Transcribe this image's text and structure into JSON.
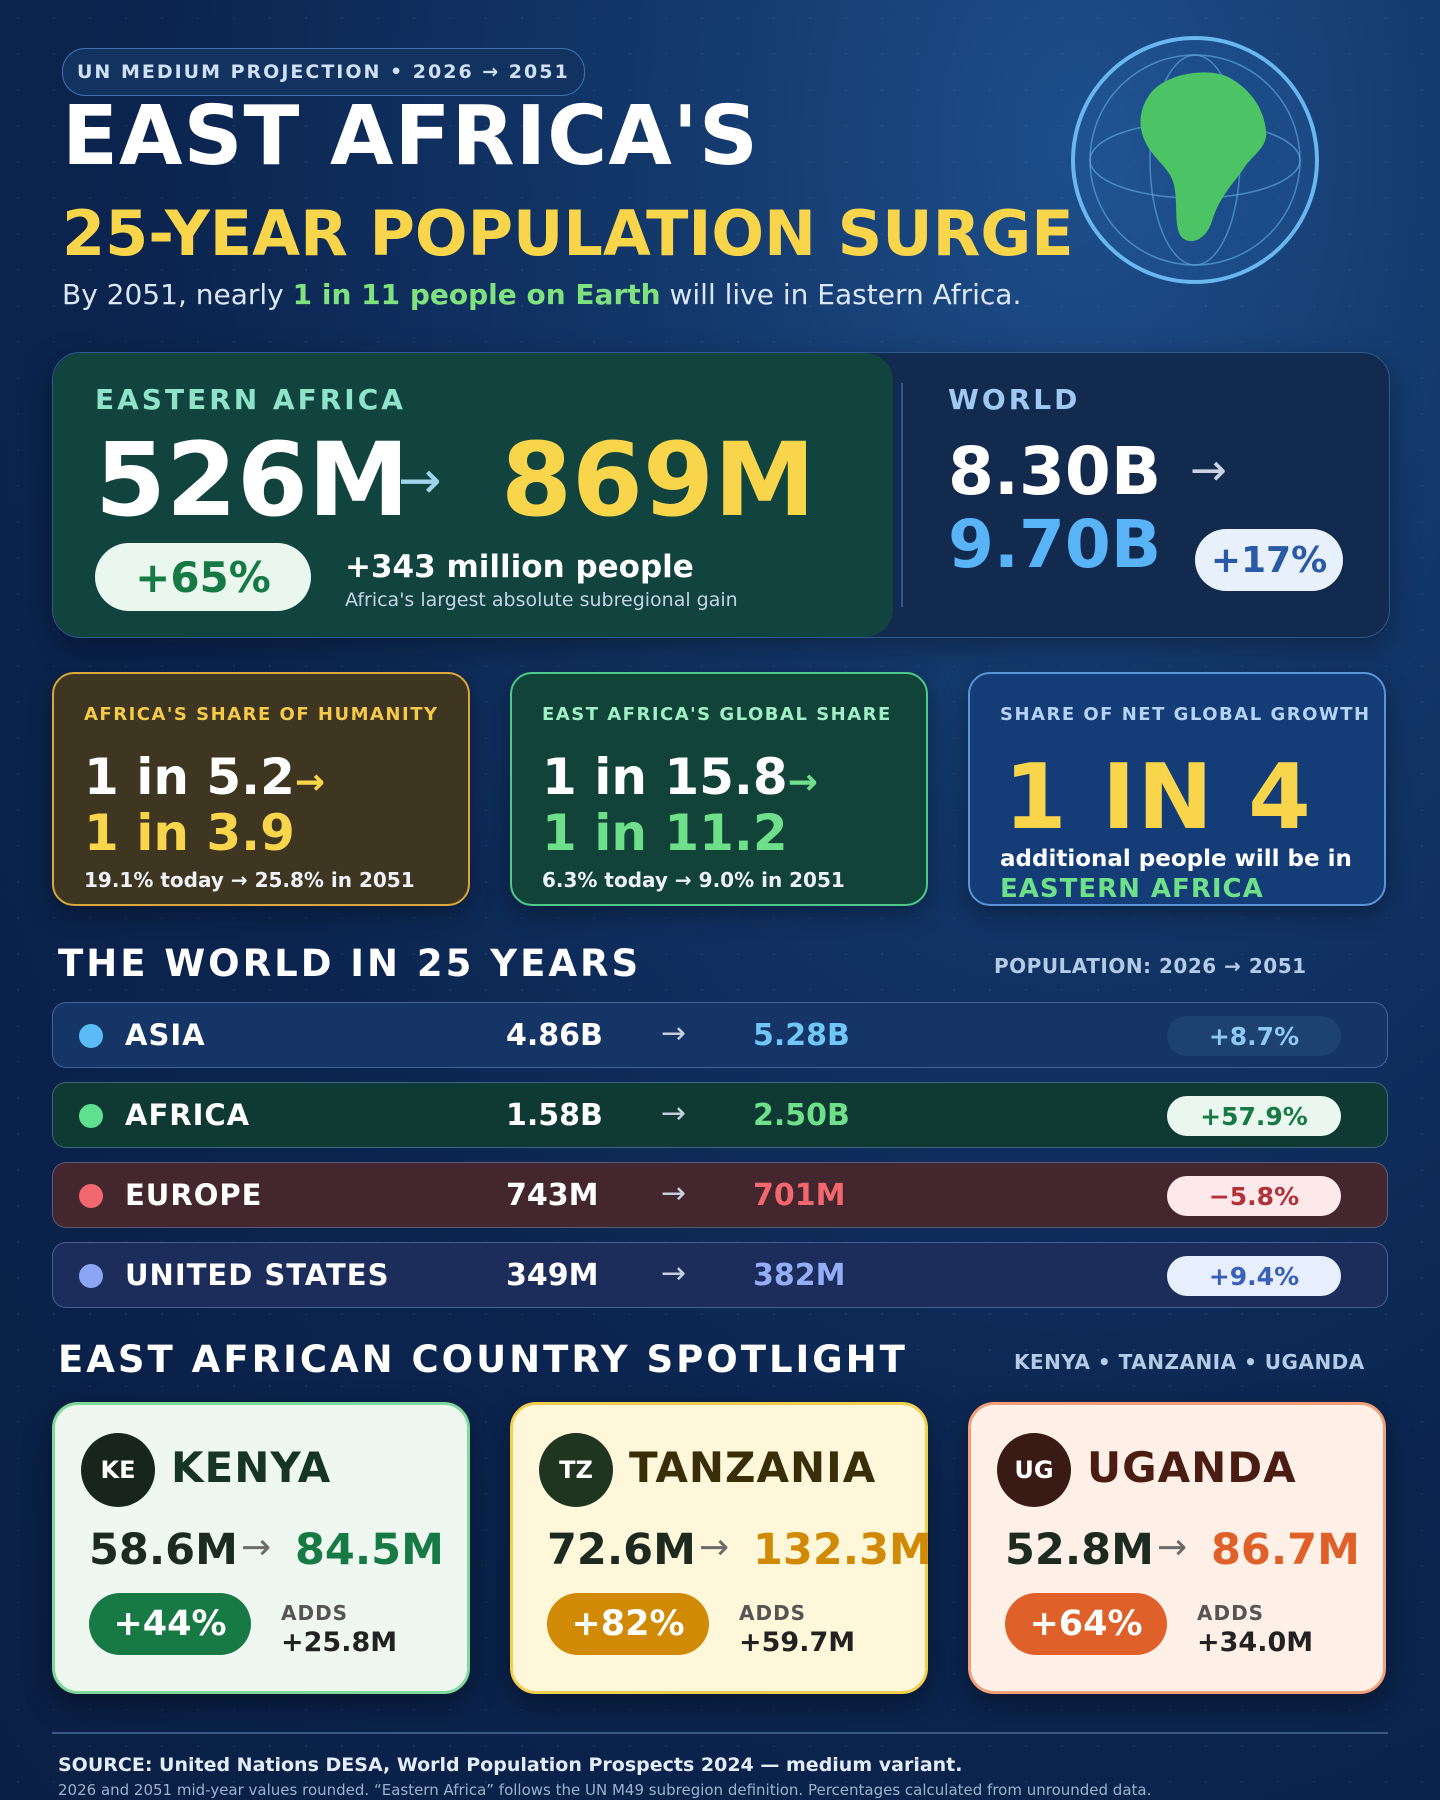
{
  "header": {
    "tag": "UN MEDIUM PROJECTION • 2026 → 2051",
    "title_line1": "EAST AFRICA'S",
    "title_line2": "25-YEAR POPULATION SURGE",
    "subtitle_pre": "By 2051, nearly ",
    "subtitle_highlight": "1 in 11 people on Earth",
    "subtitle_post": " will live in Eastern Africa."
  },
  "hero": {
    "ea_label": "EASTERN AFRICA",
    "ea_from": "526M",
    "ea_to": "869M",
    "ea_change": "+65%",
    "ea_gain": "+343 million people",
    "ea_gain_note": "Africa's largest absolute subregional gain",
    "world_label": "WORLD",
    "world_from": "8.30B",
    "world_to": "9.70B",
    "world_change": "+17%",
    "arrow": "→"
  },
  "stats": [
    {
      "label": "AFRICA'S SHARE OF HUMANITY",
      "line1": "1 in 5.2",
      "line2": "1 in 3.9",
      "footer": "19.1% today → 25.8% in 2051"
    },
    {
      "label": "EAST AFRICA'S GLOBAL SHARE",
      "line1": "1 in 15.8",
      "line2": "1 in 11.2",
      "footer": "6.3% today → 9.0% in 2051"
    },
    {
      "label": "SHARE OF NET GLOBAL GROWTH",
      "big": "1 IN 4",
      "text1": "additional people will be in",
      "text2": "EASTERN AFRICA"
    }
  ],
  "world_section": {
    "title": "THE WORLD IN 25 YEARS",
    "right_label": "POPULATION: 2026 → 2051",
    "rows": [
      {
        "name": "ASIA",
        "from": "4.86B",
        "to": "5.28B",
        "change": "+8.7%",
        "color": "#5bbcf5"
      },
      {
        "name": "AFRICA",
        "from": "1.58B",
        "to": "2.50B",
        "change": "+57.9%",
        "color": "#5ee08f"
      },
      {
        "name": "EUROPE",
        "from": "743M",
        "to": "701M",
        "change": "−5.8%",
        "color": "#f2686e"
      },
      {
        "name": "UNITED STATES",
        "from": "349M",
        "to": "382M",
        "change": "+9.4%",
        "color": "#8aa6f5"
      }
    ]
  },
  "country_section": {
    "title": "EAST AFRICAN COUNTRY SPOTLIGHT",
    "right_label": "KENYA • TANZANIA • UGANDA",
    "adds_label": "ADDS",
    "countries": [
      {
        "code": "KE",
        "name": "KENYA",
        "from": "58.6M",
        "to": "84.5M",
        "change": "+44%",
        "adds": "+25.8M"
      },
      {
        "code": "TZ",
        "name": "TANZANIA",
        "from": "72.6M",
        "to": "132.3M",
        "change": "+82%",
        "adds": "+59.7M"
      },
      {
        "code": "UG",
        "name": "UGANDA",
        "from": "52.8M",
        "to": "86.7M",
        "change": "+64%",
        "adds": "+34.0M"
      }
    ]
  },
  "footer": {
    "source": "SOURCE: United Nations DESA, World Population Prospects 2024 — medium variant.",
    "note": "2026 and 2051 mid-year values rounded. “Eastern Africa” follows the UN M49 subregion definition. Percentages calculated from unrounded data."
  }
}
